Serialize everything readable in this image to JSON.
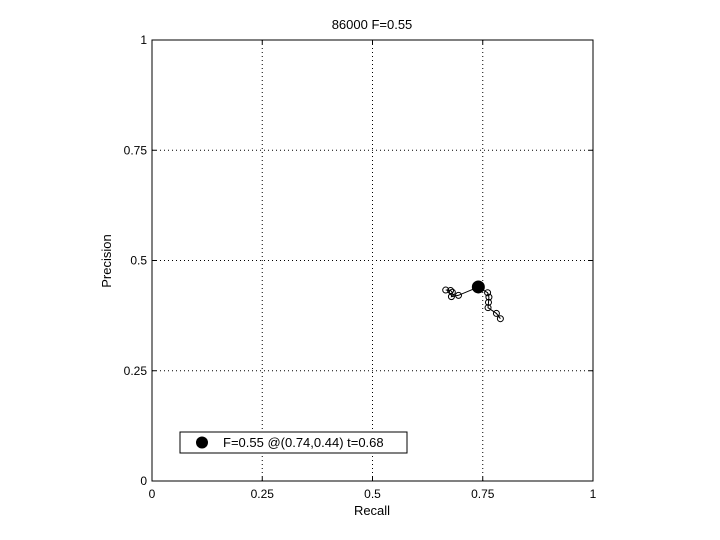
{
  "chart_data": {
    "type": "scatter",
    "title": "86000 F=0.55",
    "xlabel": "Recall",
    "ylabel": "Precision",
    "xlim": [
      0,
      1
    ],
    "ylim": [
      0,
      1
    ],
    "xticks": [
      0,
      0.25,
      0.5,
      0.75,
      1
    ],
    "yticks": [
      0,
      0.25,
      0.5,
      0.75,
      1
    ],
    "xtick_labels": [
      "0",
      "0.25",
      "0.5",
      "0.75",
      "1"
    ],
    "ytick_labels": [
      "0",
      "0.25",
      "0.5",
      "0.75",
      "1"
    ],
    "grid": true,
    "legend_position": "bottom-left",
    "legend_label": "F=0.55 @(0.74,0.44) t=0.68",
    "best_point": {
      "x": 0.74,
      "y": 0.44
    },
    "series": [
      {
        "marker": "open-circle",
        "line": "solid",
        "points": [
          {
            "x": 0.666,
            "y": 0.433
          },
          {
            "x": 0.677,
            "y": 0.432
          },
          {
            "x": 0.681,
            "y": 0.428
          },
          {
            "x": 0.679,
            "y": 0.418
          },
          {
            "x": 0.695,
            "y": 0.421
          },
          {
            "x": 0.74,
            "y": 0.44
          },
          {
            "x": 0.761,
            "y": 0.427
          },
          {
            "x": 0.764,
            "y": 0.417
          },
          {
            "x": 0.763,
            "y": 0.405
          },
          {
            "x": 0.762,
            "y": 0.393
          },
          {
            "x": 0.781,
            "y": 0.38
          },
          {
            "x": 0.79,
            "y": 0.368
          }
        ]
      }
    ]
  }
}
